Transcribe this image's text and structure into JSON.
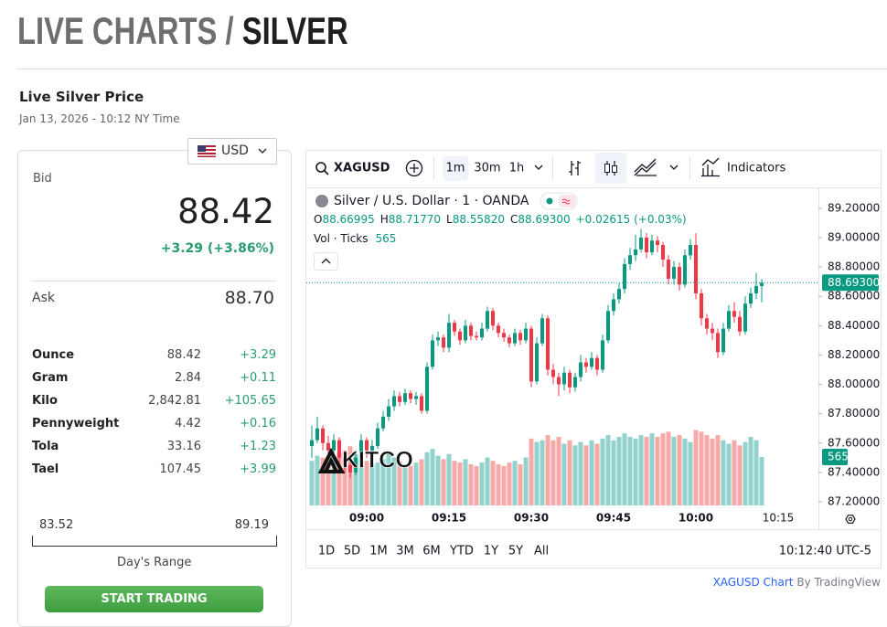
{
  "header": {
    "title_prefix": "LIVE CHARTS /",
    "title": "SILVER",
    "subtitle": "Live Silver Price",
    "timestamp": "Jan 13, 2026 - 10:12 NY Time"
  },
  "price_panel": {
    "currency": "USD",
    "bid_label": "Bid",
    "bid": "88.42",
    "change": "+3.29 (+3.86%)",
    "ask_label": "Ask",
    "ask": "88.70",
    "units": [
      [
        "Ounce",
        "88.42",
        "+3.29"
      ],
      [
        "Gram",
        "2.84",
        "+0.11"
      ],
      [
        "Kilo",
        "2,842.81",
        "+105.65"
      ],
      [
        "Pennyweight",
        "4.42",
        "+0.16"
      ],
      [
        "Tola",
        "33.16",
        "+1.23"
      ],
      [
        "Tael",
        "107.45",
        "+3.99"
      ]
    ],
    "range_low": "83.52",
    "range_high": "89.19",
    "range_label": "Day's Range",
    "button": "START TRADING"
  },
  "chart_data": {
    "type": "candlestick",
    "symbol": "XAGUSD",
    "intervals": [
      "1m",
      "30m",
      "1h"
    ],
    "indicators_label": "Indicators",
    "title": "Silver / U.S. Dollar · 1 · OANDA",
    "ohlc_labels": [
      "O",
      "H",
      "L",
      "C"
    ],
    "ohlc_values": [
      "88.66995",
      "88.71770",
      "88.55820",
      "88.69300"
    ],
    "ohlc_change": "+0.02615 (+0.03%)",
    "volume_label": "Vol · Ticks",
    "last_label": "88.69300",
    "watermark": "KITCO",
    "ranges": [
      "1D",
      "5D",
      "1M",
      "3M",
      "6M",
      "YTD",
      "1Y",
      "5Y",
      "All"
    ],
    "clock": "10:12:40 UTC-5",
    "attribution": "XAGUSD Chart",
    "attribution_by": "By TradingView",
    "up_color": "#089981",
    "down_color": "#f23645",
    "up_volume_color": "#92d2cc",
    "down_volume_color": "#f7a9a7",
    "x": [
      "08:50",
      "08:51",
      "08:52",
      "08:53",
      "08:54",
      "08:55",
      "08:56",
      "08:57",
      "08:58",
      "08:59",
      "09:00",
      "09:01",
      "09:02",
      "09:03",
      "09:04",
      "09:05",
      "09:06",
      "09:07",
      "09:08",
      "09:09",
      "09:10",
      "09:11",
      "09:12",
      "09:13",
      "09:14",
      "09:15",
      "09:16",
      "09:17",
      "09:18",
      "09:19",
      "09:20",
      "09:21",
      "09:22",
      "09:23",
      "09:24",
      "09:25",
      "09:26",
      "09:27",
      "09:28",
      "09:29",
      "09:30",
      "09:31",
      "09:32",
      "09:33",
      "09:34",
      "09:35",
      "09:36",
      "09:37",
      "09:38",
      "09:39",
      "09:40",
      "09:41",
      "09:42",
      "09:43",
      "09:44",
      "09:45",
      "09:46",
      "09:47",
      "09:48",
      "09:49",
      "09:50",
      "09:51",
      "09:52",
      "09:53",
      "09:54",
      "09:55",
      "09:56",
      "09:57",
      "09:58",
      "09:59",
      "10:00",
      "10:01",
      "10:02",
      "10:03",
      "10:04",
      "10:05",
      "10:06",
      "10:07",
      "10:08",
      "10:09",
      "10:10",
      "10:11",
      "10:12"
    ],
    "candles": [
      [
        87.58,
        87.72,
        87.5,
        87.62,
        520
      ],
      [
        87.62,
        87.78,
        87.6,
        87.7,
        580
      ],
      [
        87.7,
        87.72,
        87.55,
        87.6,
        560
      ],
      [
        87.6,
        87.65,
        87.5,
        87.55,
        500
      ],
      [
        87.55,
        87.66,
        87.52,
        87.62,
        540
      ],
      [
        87.62,
        87.64,
        87.46,
        87.5,
        610
      ],
      [
        87.5,
        87.55,
        87.4,
        87.45,
        640
      ],
      [
        87.45,
        87.5,
        87.36,
        87.4,
        690
      ],
      [
        87.4,
        87.55,
        87.38,
        87.5,
        600
      ],
      [
        87.5,
        87.66,
        87.48,
        87.62,
        560
      ],
      [
        87.62,
        87.64,
        87.5,
        87.55,
        520
      ],
      [
        87.55,
        87.62,
        87.52,
        87.58,
        480
      ],
      [
        87.58,
        87.74,
        87.56,
        87.7,
        500
      ],
      [
        87.7,
        87.82,
        87.68,
        87.78,
        540
      ],
      [
        87.78,
        87.9,
        87.75,
        87.85,
        600
      ],
      [
        87.85,
        87.96,
        87.82,
        87.92,
        560
      ],
      [
        87.92,
        87.95,
        87.85,
        87.88,
        520
      ],
      [
        87.88,
        87.97,
        87.86,
        87.94,
        480
      ],
      [
        87.94,
        87.96,
        87.87,
        87.9,
        460
      ],
      [
        87.9,
        87.95,
        87.86,
        87.92,
        500
      ],
      [
        87.92,
        87.94,
        87.8,
        87.82,
        540
      ],
      [
        87.82,
        88.15,
        87.8,
        88.12,
        620
      ],
      [
        88.12,
        88.34,
        88.1,
        88.3,
        660
      ],
      [
        88.3,
        88.36,
        88.26,
        88.32,
        580
      ],
      [
        88.32,
        88.34,
        88.22,
        88.25,
        540
      ],
      [
        88.25,
        88.48,
        88.22,
        88.42,
        600
      ],
      [
        88.42,
        88.44,
        88.33,
        88.36,
        520
      ],
      [
        88.36,
        88.38,
        88.27,
        88.3,
        500
      ],
      [
        88.3,
        88.44,
        88.28,
        88.4,
        540
      ],
      [
        88.4,
        88.42,
        88.3,
        88.33,
        480
      ],
      [
        88.33,
        88.36,
        88.3,
        88.32,
        460
      ],
      [
        88.32,
        88.42,
        88.3,
        88.38,
        500
      ],
      [
        88.38,
        88.53,
        88.36,
        88.5,
        560
      ],
      [
        88.5,
        88.52,
        88.37,
        88.4,
        520
      ],
      [
        88.4,
        88.42,
        88.32,
        88.35,
        480
      ],
      [
        88.35,
        88.38,
        88.29,
        88.32,
        460
      ],
      [
        88.32,
        88.34,
        88.25,
        88.28,
        500
      ],
      [
        88.28,
        88.38,
        88.26,
        88.35,
        520
      ],
      [
        88.35,
        88.37,
        88.27,
        88.3,
        480
      ],
      [
        88.3,
        88.42,
        88.28,
        88.38,
        560
      ],
      [
        88.38,
        88.4,
        87.98,
        88.02,
        780
      ],
      [
        88.02,
        88.32,
        88.0,
        88.28,
        740
      ],
      [
        88.28,
        88.48,
        88.26,
        88.45,
        760
      ],
      [
        88.45,
        88.47,
        88.06,
        88.1,
        820
      ],
      [
        88.1,
        88.14,
        88.0,
        88.05,
        760
      ],
      [
        88.05,
        88.08,
        87.92,
        88.0,
        800
      ],
      [
        88.0,
        88.12,
        87.96,
        88.08,
        720
      ],
      [
        88.08,
        88.1,
        87.94,
        87.98,
        760
      ],
      [
        87.98,
        88.08,
        87.95,
        88.05,
        700
      ],
      [
        88.05,
        88.2,
        88.02,
        88.15,
        740
      ],
      [
        88.15,
        88.18,
        88.08,
        88.12,
        700
      ],
      [
        88.12,
        88.22,
        88.1,
        88.18,
        760
      ],
      [
        88.18,
        88.2,
        88.06,
        88.1,
        720
      ],
      [
        88.1,
        88.34,
        88.08,
        88.3,
        780
      ],
      [
        88.3,
        88.54,
        88.28,
        88.5,
        820
      ],
      [
        88.5,
        88.62,
        88.47,
        88.58,
        760
      ],
      [
        88.58,
        88.69,
        88.55,
        88.65,
        800
      ],
      [
        88.65,
        88.86,
        88.62,
        88.82,
        840
      ],
      [
        88.82,
        88.93,
        88.78,
        88.88,
        800
      ],
      [
        88.88,
        89.02,
        88.84,
        88.92,
        780
      ],
      [
        88.92,
        89.06,
        88.9,
        89.0,
        820
      ],
      [
        89.0,
        89.03,
        88.86,
        88.9,
        800
      ],
      [
        88.9,
        89.02,
        88.88,
        88.98,
        840
      ],
      [
        88.98,
        89.01,
        88.9,
        88.95,
        800
      ],
      [
        88.95,
        88.97,
        88.8,
        88.85,
        840
      ],
      [
        88.85,
        88.88,
        88.68,
        88.72,
        860
      ],
      [
        88.72,
        88.84,
        88.68,
        88.8,
        800
      ],
      [
        88.8,
        88.83,
        88.64,
        88.68,
        820
      ],
      [
        88.68,
        88.92,
        88.66,
        88.88,
        780
      ],
      [
        88.88,
        88.99,
        88.85,
        88.95,
        740
      ],
      [
        88.95,
        89.03,
        88.58,
        88.62,
        880
      ],
      [
        88.62,
        88.65,
        88.4,
        88.45,
        860
      ],
      [
        88.45,
        88.48,
        88.34,
        88.38,
        820
      ],
      [
        88.38,
        88.42,
        88.3,
        88.35,
        780
      ],
      [
        88.35,
        88.38,
        88.18,
        88.22,
        820
      ],
      [
        88.22,
        88.42,
        88.2,
        88.38,
        760
      ],
      [
        88.38,
        88.54,
        88.36,
        88.5,
        720
      ],
      [
        88.5,
        88.56,
        88.42,
        88.46,
        760
      ],
      [
        88.46,
        88.5,
        88.33,
        88.36,
        700
      ],
      [
        88.36,
        88.6,
        88.34,
        88.55,
        740
      ],
      [
        88.55,
        88.66,
        88.52,
        88.62,
        800
      ],
      [
        88.62,
        88.76,
        88.58,
        88.67,
        760
      ],
      [
        88.66995,
        88.7177,
        88.5582,
        88.693,
        565
      ]
    ],
    "xlim": [
      "08:50",
      "10:22"
    ],
    "xticks": [
      "09:00",
      "09:15",
      "09:30",
      "09:45",
      "10:00",
      "10:15"
    ],
    "ylim": [
      87.175,
      89.33
    ],
    "yticks": [
      {
        "value": 87.2,
        "label": "87.20000"
      },
      {
        "value": 87.4,
        "label": "87.40000"
      },
      {
        "value": 87.6,
        "label": "87.60000"
      },
      {
        "value": 87.8,
        "label": "87.80000"
      },
      {
        "value": 88,
        "label": "88.00000"
      },
      {
        "value": 88.2,
        "label": "88.20000"
      },
      {
        "value": 88.4,
        "label": "88.40000"
      },
      {
        "value": 88.6,
        "label": "88.60000"
      },
      {
        "value": 88.8,
        "label": "88.80000"
      },
      {
        "value": 89,
        "label": "89.00000"
      },
      {
        "value": 89.2,
        "label": "89.20000"
      }
    ]
  }
}
